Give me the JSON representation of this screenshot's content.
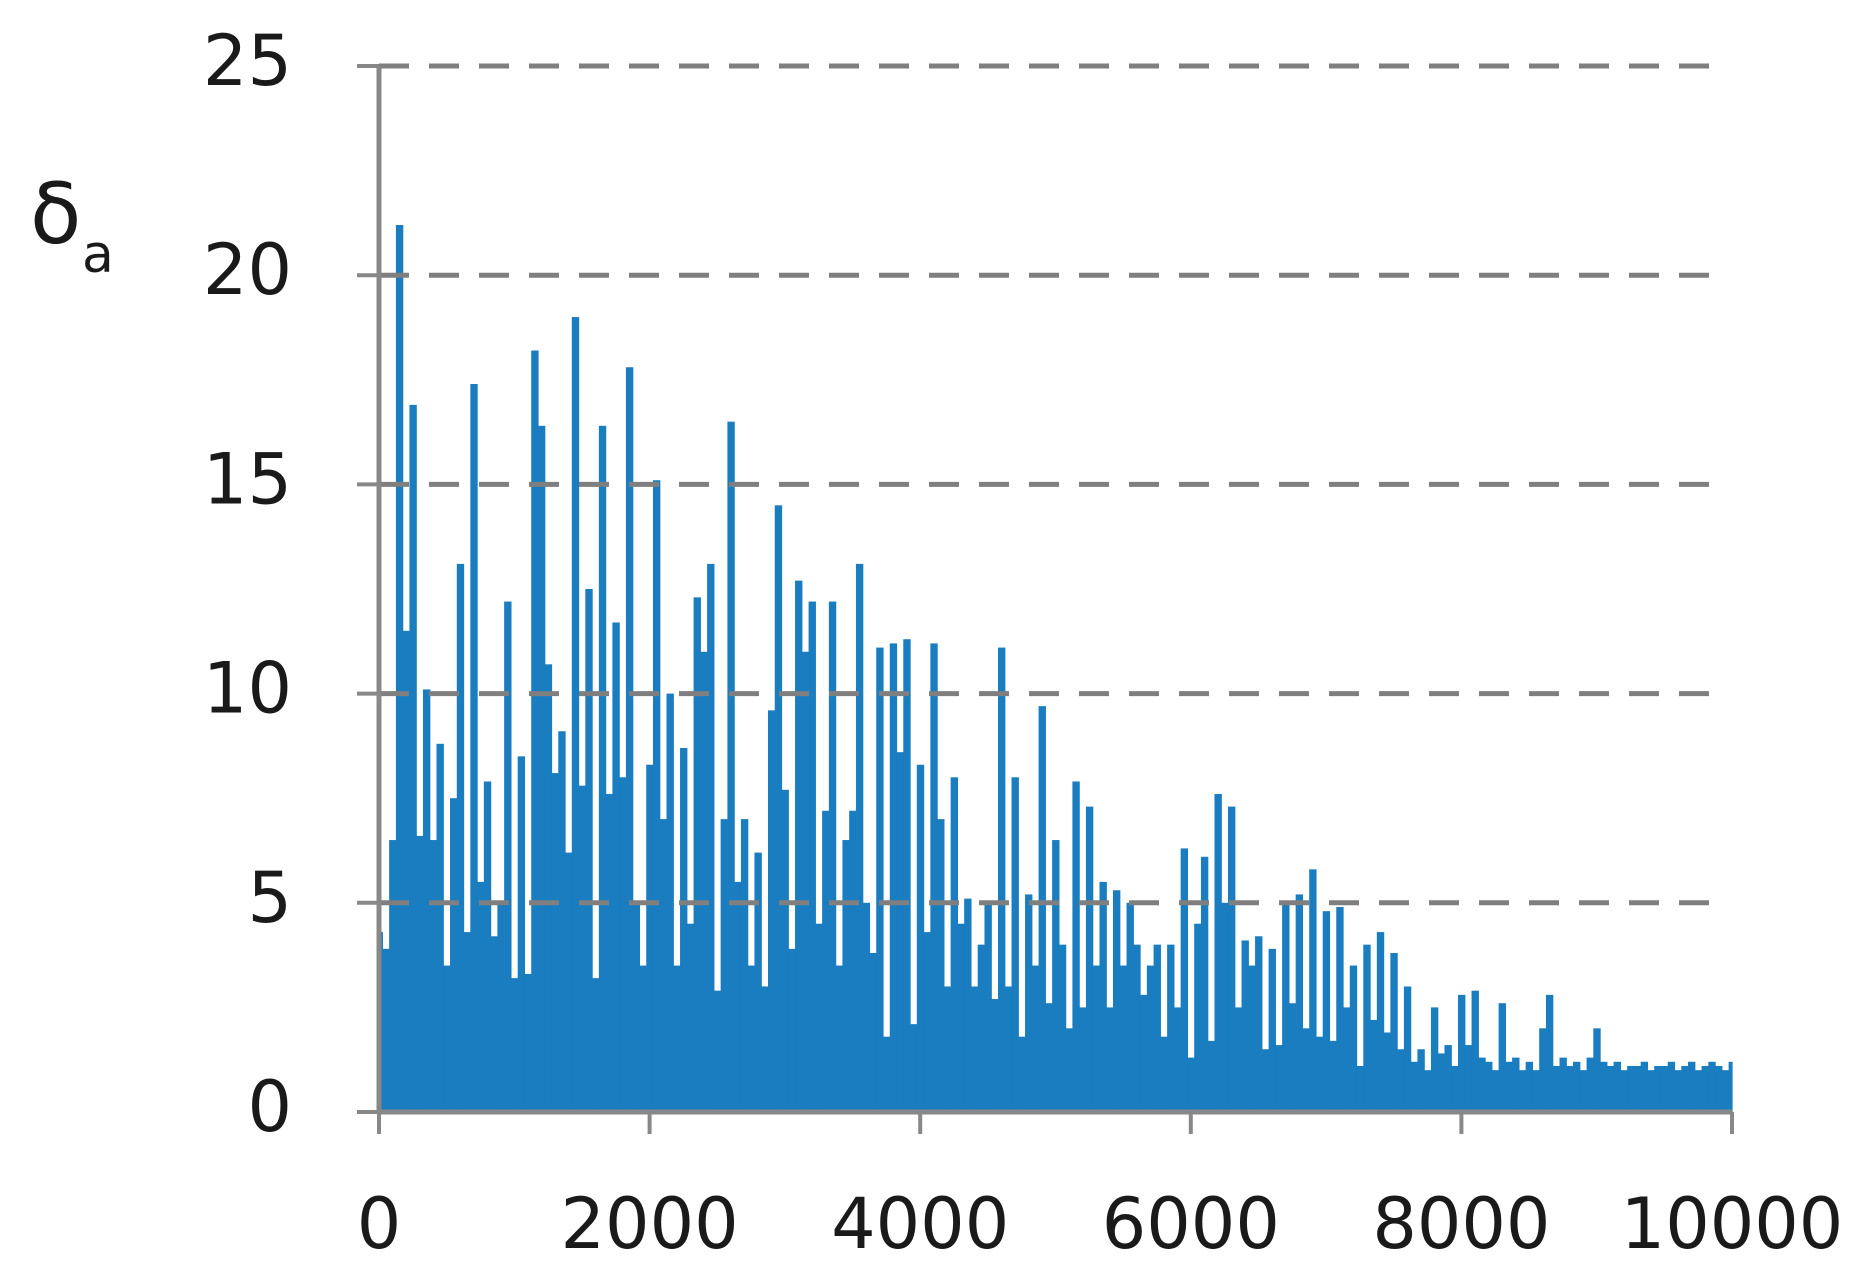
{
  "chart_data": {
    "type": "bar",
    "ylabel": "δ",
    "ylabel_subscript": "a",
    "color": "#1a7dc0",
    "grid": true,
    "xlim": [
      0,
      10000
    ],
    "xticks": [
      0,
      2000,
      4000,
      6000,
      8000,
      10000
    ],
    "ylim": [
      0,
      25
    ],
    "yticks": [
      0,
      5,
      10,
      15,
      20,
      25
    ],
    "x": [
      0,
      50,
      100,
      150,
      200,
      250,
      300,
      350,
      400,
      450,
      500,
      550,
      600,
      650,
      700,
      750,
      800,
      850,
      900,
      950,
      1000,
      1050,
      1100,
      1150,
      1200,
      1250,
      1300,
      1350,
      1400,
      1450,
      1500,
      1550,
      1600,
      1650,
      1700,
      1750,
      1800,
      1850,
      1900,
      1950,
      2000,
      2050,
      2100,
      2150,
      2200,
      2250,
      2300,
      2350,
      2400,
      2450,
      2500,
      2550,
      2600,
      2650,
      2700,
      2750,
      2800,
      2850,
      2900,
      2950,
      3000,
      3050,
      3100,
      3150,
      3200,
      3250,
      3300,
      3350,
      3400,
      3450,
      3500,
      3550,
      3600,
      3650,
      3700,
      3750,
      3800,
      3850,
      3900,
      3950,
      4000,
      4050,
      4100,
      4150,
      4200,
      4250,
      4300,
      4350,
      4400,
      4450,
      4500,
      4550,
      4600,
      4650,
      4700,
      4750,
      4800,
      4850,
      4900,
      4950,
      5000,
      5050,
      5100,
      5150,
      5200,
      5250,
      5300,
      5350,
      5400,
      5450,
      5500,
      5550,
      5600,
      5650,
      5700,
      5750,
      5800,
      5850,
      5900,
      5950,
      6000,
      6050,
      6100,
      6150,
      6200,
      6250,
      6300,
      6350,
      6400,
      6450,
      6500,
      6550,
      6600,
      6650,
      6700,
      6750,
      6800,
      6850,
      6900,
      6950,
      7000,
      7050,
      7100,
      7150,
      7200,
      7250,
      7300,
      7350,
      7400,
      7450,
      7500,
      7550,
      7600,
      7650,
      7700,
      7750,
      7800,
      7850,
      7900,
      7950,
      8000,
      8050,
      8100,
      8150,
      8200,
      8250,
      8300,
      8350,
      8400,
      8450,
      8500,
      8550,
      8600,
      8650,
      8700,
      8750,
      8800,
      8850,
      8900,
      8950,
      9000,
      9050,
      9100,
      9150,
      9200,
      9250,
      9300,
      9350,
      9400,
      9450,
      9500,
      9550,
      9600,
      9650,
      9700,
      9750,
      9800,
      9850,
      9900,
      9950,
      10000
    ],
    "values": [
      4.3,
      3.9,
      6.5,
      21.2,
      11.5,
      16.9,
      6.6,
      10.1,
      6.5,
      8.8,
      3.5,
      7.5,
      13.1,
      4.3,
      17.4,
      5.5,
      7.9,
      4.2,
      5.0,
      12.2,
      3.2,
      8.5,
      3.3,
      18.2,
      16.4,
      10.7,
      8.1,
      9.1,
      6.2,
      19.0,
      7.8,
      12.5,
      3.2,
      16.4,
      7.6,
      11.7,
      8.0,
      17.8,
      5.0,
      3.5,
      8.3,
      15.1,
      7.0,
      10.0,
      3.5,
      8.7,
      4.5,
      12.3,
      11.0,
      13.1,
      2.9,
      7.0,
      16.5,
      5.5,
      7.0,
      3.5,
      6.2,
      3.0,
      9.6,
      14.5,
      7.7,
      3.9,
      12.7,
      11.0,
      12.2,
      4.5,
      7.2,
      12.2,
      3.5,
      6.5,
      7.2,
      13.1,
      5.0,
      3.8,
      11.1,
      1.8,
      11.2,
      8.6,
      11.3,
      2.1,
      8.3,
      4.3,
      11.2,
      7.0,
      3.0,
      8.0,
      4.5,
      5.1,
      3.0,
      4.0,
      5.0,
      2.7,
      11.1,
      3.0,
      8.0,
      1.8,
      5.2,
      3.5,
      9.7,
      2.6,
      6.5,
      4.0,
      2.0,
      7.9,
      2.5,
      7.3,
      3.5,
      5.5,
      2.5,
      5.3,
      3.5,
      5.0,
      4.0,
      2.8,
      3.5,
      4.0,
      1.8,
      4.0,
      2.5,
      6.3,
      1.3,
      4.5,
      6.1,
      1.7,
      7.6,
      5.0,
      7.3,
      2.5,
      4.1,
      3.5,
      4.2,
      1.5,
      3.9,
      1.6,
      5.0,
      2.6,
      5.2,
      2.0,
      5.8,
      1.8,
      4.8,
      1.7,
      4.9,
      2.5,
      3.5,
      1.1,
      4.0,
      2.2,
      4.3,
      1.9,
      3.8,
      1.5,
      3.0,
      1.2,
      1.5,
      1.0,
      2.5,
      1.4,
      1.6,
      1.1,
      2.8,
      1.6,
      2.9,
      1.3,
      1.2,
      1.0,
      2.6,
      1.2,
      1.3,
      1.0,
      1.2,
      1.0,
      2.0,
      2.8,
      1.1,
      1.3,
      1.1,
      1.2,
      1.0,
      1.3,
      2.0,
      1.2,
      1.1,
      1.2,
      1.0,
      1.1,
      1.1,
      1.2,
      1.0,
      1.1,
      1.1,
      1.2,
      1.0,
      1.1,
      1.2,
      1.0,
      1.1,
      1.2,
      1.1,
      1.0,
      1.2
    ]
  }
}
